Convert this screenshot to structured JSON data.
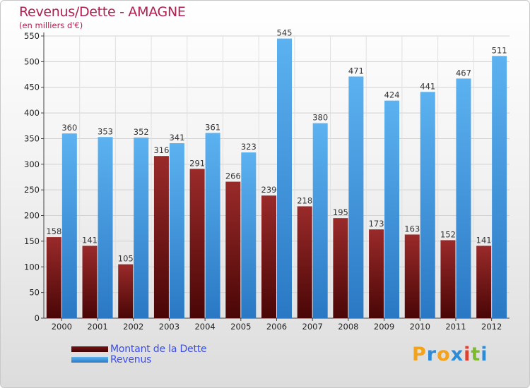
{
  "chart_data": {
    "type": "bar",
    "title": "Revenus/Dette - AMAGNE",
    "subtitle": "(en milliers d'€)",
    "categories": [
      "2000",
      "2001",
      "2002",
      "2003",
      "2004",
      "2005",
      "2006",
      "2007",
      "2008",
      "2009",
      "2010",
      "2011",
      "2012"
    ],
    "series": [
      {
        "name": "Montant de la Dette",
        "values": [
          158,
          141,
          105,
          316,
          291,
          266,
          239,
          218,
          195,
          173,
          163,
          152,
          141
        ],
        "color": "#8a1a1a"
      },
      {
        "name": "Revenus",
        "values": [
          360,
          353,
          352,
          341,
          361,
          323,
          545,
          380,
          471,
          424,
          441,
          467,
          511
        ],
        "color": "#3d9be6"
      }
    ],
    "ylim": [
      0,
      550
    ],
    "yticks": [
      0,
      50,
      100,
      150,
      200,
      250,
      300,
      350,
      400,
      450,
      500,
      550
    ],
    "grid": true,
    "legend_position": "bottom-left"
  },
  "logo": {
    "letters": [
      "P",
      "r",
      "o",
      "x",
      "i",
      "t",
      "i"
    ],
    "colors": [
      "#f2a21b",
      "#2e8bd8",
      "#f2a21b",
      "#2e8bd8",
      "#e0402f",
      "#7dbb2e",
      "#2e8bd8"
    ]
  }
}
